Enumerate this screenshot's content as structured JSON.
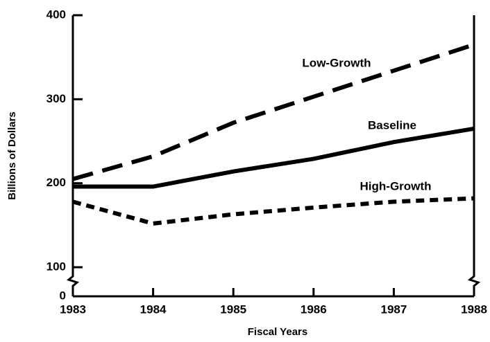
{
  "chart_data": {
    "type": "line",
    "x": [
      1983,
      1984,
      1985,
      1986,
      1987,
      1988
    ],
    "xlim": [
      1983,
      1988
    ],
    "xticks": [
      1983,
      1984,
      1985,
      1986,
      1987,
      1988
    ],
    "ylim": [
      0,
      400
    ],
    "yticks": [
      0,
      100,
      200,
      300,
      400
    ],
    "axis_break": [
      0,
      100
    ],
    "xlabel": "Fiscal Years",
    "ylabel": "Billions of Dollars",
    "series": [
      {
        "name": "Low-Growth",
        "color": "#000000",
        "line_style": "long-dash",
        "values": [
          205,
          232,
          272,
          303,
          334,
          365
        ]
      },
      {
        "name": "Baseline",
        "color": "#000000",
        "line_style": "solid",
        "values": [
          196,
          196,
          214,
          229,
          249,
          265
        ]
      },
      {
        "name": "High-Growth",
        "color": "#000000",
        "line_style": "short-dash",
        "values": [
          178,
          152,
          163,
          171,
          178,
          182
        ]
      }
    ]
  }
}
